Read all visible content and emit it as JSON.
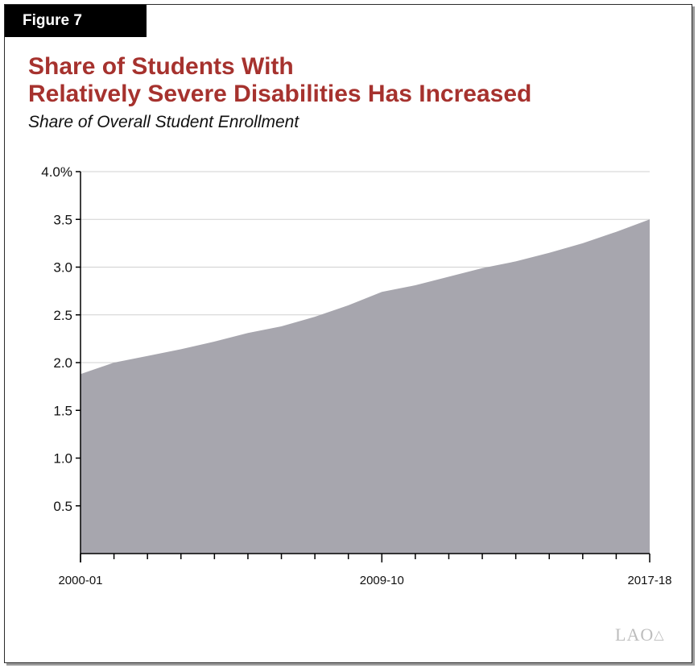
{
  "figure_label": "Figure 7",
  "title_line1": "Share of Students With",
  "title_line2": "Relatively Severe Disabilities Has Increased",
  "subtitle": "Share of Overall Student Enrollment",
  "logo_text": "LAO",
  "colors": {
    "title": "#a6322e",
    "area_fill": "#a7a6ae",
    "gridline": "#d0d0d0"
  },
  "chart_data": {
    "type": "area",
    "x": [
      "2000-01",
      "2001-02",
      "2002-03",
      "2003-04",
      "2004-05",
      "2005-06",
      "2006-07",
      "2007-08",
      "2008-09",
      "2009-10",
      "2010-11",
      "2011-12",
      "2012-13",
      "2013-14",
      "2014-15",
      "2015-16",
      "2016-17",
      "2017-18"
    ],
    "values": [
      1.88,
      2.0,
      2.07,
      2.14,
      2.22,
      2.31,
      2.38,
      2.48,
      2.6,
      2.74,
      2.81,
      2.9,
      2.99,
      3.06,
      3.15,
      3.25,
      3.37,
      3.5
    ],
    "x_tick_labels": [
      "2000-01",
      "2009-10",
      "2017-18"
    ],
    "x_tick_label_indices": [
      0,
      9,
      17
    ],
    "y_tick_labels": [
      "4.0%",
      "3.5",
      "3.0",
      "2.5",
      "2.0",
      "1.5",
      "1.0",
      "0.5"
    ],
    "y_ticks": [
      4.0,
      3.5,
      3.0,
      2.5,
      2.0,
      1.5,
      1.0,
      0.5
    ],
    "ylim": [
      0,
      4.0
    ],
    "grid": true,
    "title": "Share of Students With Relatively Severe Disabilities Has Increased",
    "subtitle": "Share of Overall Student Enrollment",
    "xlabel": "",
    "ylabel": ""
  }
}
